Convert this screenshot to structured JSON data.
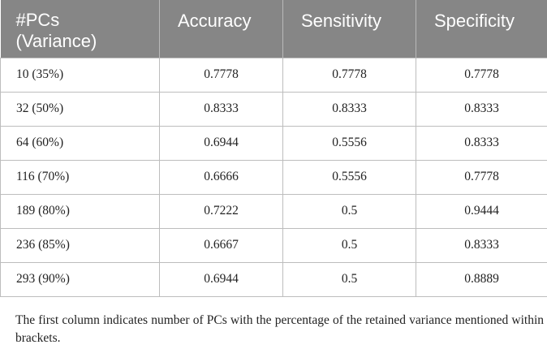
{
  "table": {
    "headers": {
      "col1_line1": "#PCs",
      "col1_line2": "(Variance)",
      "col2": "Accuracy",
      "col3": "Sensitivity",
      "col4": "Specificity"
    },
    "rows": [
      {
        "pcs": "10 (35%)",
        "accuracy": "0.7778",
        "sensitivity": "0.7778",
        "specificity": "0.7778"
      },
      {
        "pcs": "32 (50%)",
        "accuracy": "0.8333",
        "sensitivity": "0.8333",
        "specificity": "0.8333"
      },
      {
        "pcs": "64 (60%)",
        "accuracy": "0.6944",
        "sensitivity": "0.5556",
        "specificity": "0.8333"
      },
      {
        "pcs": "116 (70%)",
        "accuracy": "0.6666",
        "sensitivity": "0.5556",
        "specificity": "0.7778"
      },
      {
        "pcs": "189 (80%)",
        "accuracy": "0.7222",
        "sensitivity": "0.5",
        "specificity": "0.9444"
      },
      {
        "pcs": "236 (85%)",
        "accuracy": "0.6667",
        "sensitivity": "0.5",
        "specificity": "0.8333"
      },
      {
        "pcs": "293 (90%)",
        "accuracy": "0.6944",
        "sensitivity": "0.5",
        "specificity": "0.8889"
      }
    ]
  },
  "footnote": "The first column indicates number of PCs with the percentage of the retained variance mentioned within brackets."
}
